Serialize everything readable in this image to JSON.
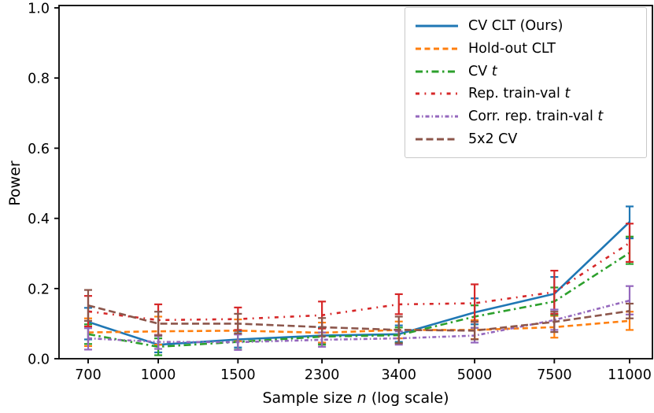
{
  "figure": {
    "background": "#ffffff",
    "ylabel": "Power",
    "xlabel": {
      "pre": "Sample size ",
      "italic": "n",
      "post": " (log scale)"
    }
  },
  "chart_data": {
    "type": "line",
    "title": "",
    "xlabel": "Sample size n (log scale)",
    "ylabel": "Power",
    "x_scale": "log",
    "x": [
      700,
      1000,
      1500,
      2300,
      3400,
      5000,
      7500,
      11000
    ],
    "xtick_labels": [
      "700",
      "1000",
      "1500",
      "2300",
      "3400",
      "5000",
      "7500",
      "11000"
    ],
    "ylim": [
      0.0,
      1.0
    ],
    "yticks": [
      0.0,
      0.2,
      0.4,
      0.6,
      0.8,
      1.0
    ],
    "grid": false,
    "legend_position": "upper right",
    "error_bars": true,
    "series": [
      {
        "name": "CV CLT (Ours)",
        "legend": {
          "text": "CV CLT (Ours)",
          "italic": ""
        },
        "color": "#1f77b4",
        "linestyle": "solid",
        "values": [
          0.105,
          0.04,
          0.055,
          0.066,
          0.07,
          0.132,
          0.185,
          0.39
        ],
        "err_lo": [
          0.055,
          0.018,
          0.032,
          0.044,
          0.048,
          0.098,
          0.14,
          0.343
        ],
        "err_hi": [
          0.145,
          0.065,
          0.078,
          0.09,
          0.095,
          0.172,
          0.233,
          0.434
        ]
      },
      {
        "name": "Hold-out CLT",
        "legend": {
          "text": "Hold-out CLT",
          "italic": ""
        },
        "color": "#ff7f0e",
        "linestyle": "dashed",
        "values": [
          0.075,
          0.078,
          0.08,
          0.074,
          0.082,
          0.082,
          0.09,
          0.108
        ],
        "err_lo": [
          0.036,
          0.04,
          0.05,
          0.046,
          0.058,
          0.056,
          0.06,
          0.082
        ],
        "err_hi": [
          0.115,
          0.12,
          0.112,
          0.103,
          0.106,
          0.11,
          0.122,
          0.134
        ]
      },
      {
        "name": "CV t",
        "legend": {
          "text": "CV ",
          "italic": "t"
        },
        "color": "#2ca02c",
        "linestyle": "dashdot",
        "values": [
          0.07,
          0.034,
          0.048,
          0.063,
          0.067,
          0.12,
          0.163,
          0.302
        ],
        "err_lo": [
          0.042,
          0.01,
          0.026,
          0.04,
          0.045,
          0.088,
          0.125,
          0.27
        ],
        "err_hi": [
          0.098,
          0.058,
          0.07,
          0.087,
          0.089,
          0.152,
          0.203,
          0.348
        ]
      },
      {
        "name": "Rep. train-val t",
        "legend": {
          "text": "Rep. train-val ",
          "italic": "t"
        },
        "color": "#d62728",
        "linestyle": "sparse-dashdot",
        "values": [
          0.135,
          0.11,
          0.113,
          0.124,
          0.155,
          0.158,
          0.19,
          0.33
        ],
        "err_lo": [
          0.092,
          0.068,
          0.082,
          0.086,
          0.127,
          0.105,
          0.128,
          0.276
        ],
        "err_hi": [
          0.179,
          0.155,
          0.146,
          0.163,
          0.184,
          0.212,
          0.251,
          0.385
        ]
      },
      {
        "name": "Corr. rep. train-val t",
        "legend": {
          "text": "Corr. rep. train-val ",
          "italic": "t"
        },
        "color": "#9467bd",
        "linestyle": "dense-dashdot",
        "values": [
          0.058,
          0.048,
          0.047,
          0.054,
          0.058,
          0.066,
          0.11,
          0.166
        ],
        "err_lo": [
          0.026,
          0.028,
          0.025,
          0.034,
          0.04,
          0.046,
          0.082,
          0.126
        ],
        "err_hi": [
          0.087,
          0.067,
          0.069,
          0.075,
          0.078,
          0.088,
          0.14,
          0.207
        ]
      },
      {
        "name": "5x2 CV",
        "legend": {
          "text": "5x2 CV",
          "italic": ""
        },
        "color": "#8c564b",
        "linestyle": "long-dash",
        "values": [
          0.152,
          0.1,
          0.1,
          0.09,
          0.082,
          0.08,
          0.105,
          0.136
        ],
        "err_lo": [
          0.108,
          0.066,
          0.072,
          0.064,
          0.044,
          0.055,
          0.076,
          0.115
        ],
        "err_hi": [
          0.196,
          0.134,
          0.128,
          0.116,
          0.12,
          0.106,
          0.134,
          0.157
        ]
      }
    ]
  }
}
